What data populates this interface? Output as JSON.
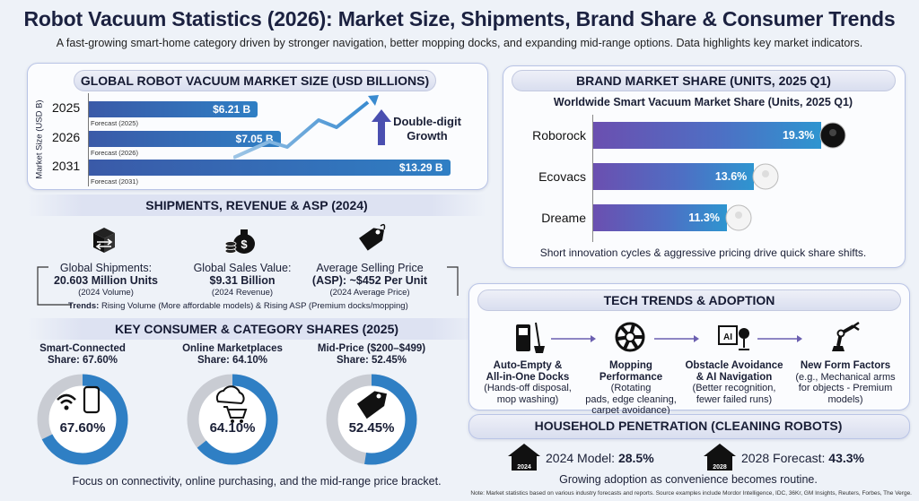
{
  "header": {
    "title": "Robot Vacuum Statistics (2026): Market Size, Shipments, Brand Share & Consumer Trends",
    "subtitle": "A fast-growing smart-home category driven by stronger navigation, better mopping docks, and expanding mid-range options. Data highlights key market indicators."
  },
  "market": {
    "heading": "GLOBAL ROBOT VACUUM MARKET SIZE (USD BILLIONS)",
    "ylabel": "Market Size (USD B)",
    "callout": "Double-digit Growth",
    "callout_line1": "Double-digit",
    "callout_line2": "Growth",
    "bars": [
      {
        "year": "2025",
        "label": "$6.21 B",
        "value": 6.21,
        "note": "Forecast (2025)"
      },
      {
        "year": "2026",
        "label": "$7.05 B",
        "value": 7.05,
        "note": "Forecast (2026)"
      },
      {
        "year": "2031",
        "label": "$13.29 B",
        "value": 13.29,
        "note": "Forecast (2031)"
      }
    ]
  },
  "shipments": {
    "heading": "SHIPMENTS, REVENUE & ASP (2024)",
    "items": [
      {
        "title": "Global Shipments:",
        "value": "20.603 Million Units",
        "note": "(2024 Volume)",
        "icon": "box-arrows-icon"
      },
      {
        "title": "Global Sales Value:",
        "value": "$9.31 Billion",
        "note": "(2024 Revenue)",
        "icon": "money-bag-icon"
      },
      {
        "title": "Average Selling Price",
        "value": "(ASP): ~$452 Per Unit",
        "note": "(2024 Average Price)",
        "icon": "price-tag-icon"
      }
    ],
    "trends_label": "Trends:",
    "trends_text": " Rising Volume (More affordable models) & Rising ASP (Premium docks/mopping)"
  },
  "consumer": {
    "heading": "KEY CONSUMER & CATEGORY SHARES (2025)",
    "rings": [
      {
        "title1": "Smart-Connected",
        "title2": "Share: 67.60%",
        "value": 67.6,
        "label": "67.60%",
        "icon": "wifi-phone-icon"
      },
      {
        "title1": "Online Marketplaces",
        "title2": "Share: 64.10%",
        "value": 64.1,
        "label": "64.10%",
        "icon": "cloud-cart-icon"
      },
      {
        "title1": "Mid-Price ($200–$499)",
        "title2": "Share: 52.45%",
        "value": 52.45,
        "label": "52.45%",
        "icon": "price-tag-icon"
      }
    ],
    "footer": "Focus on connectivity, online purchasing, and the mid-range price bracket."
  },
  "brand": {
    "heading": "BRAND MARKET SHARE (UNITS, 2025 Q1)",
    "chart_title": "Worldwide Smart Vacuum Market Share (Units, 2025 Q1)",
    "footer": "Short innovation cycles & aggressive pricing drive quick share shifts."
  },
  "chart_data": {
    "type": "bar",
    "title": "Worldwide Smart Vacuum Market Share (Units, 2025 Q1)",
    "categories": [
      "Roborock",
      "Ecovacs",
      "Dreame"
    ],
    "values": [
      19.3,
      13.6,
      11.3
    ],
    "labels": [
      "19.3%",
      "13.6%",
      "11.3%"
    ],
    "orientation": "horizontal",
    "xlim": [
      0,
      22
    ]
  },
  "tech": {
    "heading": "TECH TRENDS & ADOPTION",
    "items": [
      {
        "title1": "Auto-Empty &",
        "title2": "All-in-One Docks",
        "desc1": "(Hands-off disposal,",
        "desc2": "mop washing)",
        "desc3": "",
        "icon": "dock-broom-icon"
      },
      {
        "title1": "Mopping",
        "title2": "Performance",
        "desc1": " (Rotating",
        "desc2": "pads, edge cleaning,",
        "desc3": "carpet avoidance)",
        "icon": "rotating-pad-icon"
      },
      {
        "title1": "Obstacle Avoidance",
        "title2": "& AI Navigation",
        "desc1": "(Better recognition,",
        "desc2": "fewer failed runs)",
        "desc3": "",
        "icon": "ai-camera-icon"
      },
      {
        "title1": "New Form Factors",
        "title2": "",
        "desc1": "(e.g., Mechanical arms",
        "desc2": "for objects - Premium",
        "desc3": "models)",
        "icon": "robot-arm-icon"
      }
    ]
  },
  "household": {
    "heading": "HOUSEHOLD PENETRATION (CLEANING ROBOTS)",
    "items": [
      {
        "label": "2024 Model: ",
        "value": "28.5%",
        "year": "2024",
        "icon": "house-icon"
      },
      {
        "label": "2028 Forecast: ",
        "value": "43.3%",
        "year": "2028",
        "icon": "house-icon"
      }
    ],
    "footer": "Growing adoption as convenience becomes routine."
  },
  "footnote": "Note: Market statistics based on various industry forecasts and reports. Source examples include Mordor Intelligence, IDC, 36Kr, GM Insights, Reuters, Forbes, The Verge.",
  "colors": {
    "accent": "#2f7fc4",
    "navy": "#1b2140",
    "purple": "#6b4fb0",
    "ring_track": "#c9ccd3"
  }
}
